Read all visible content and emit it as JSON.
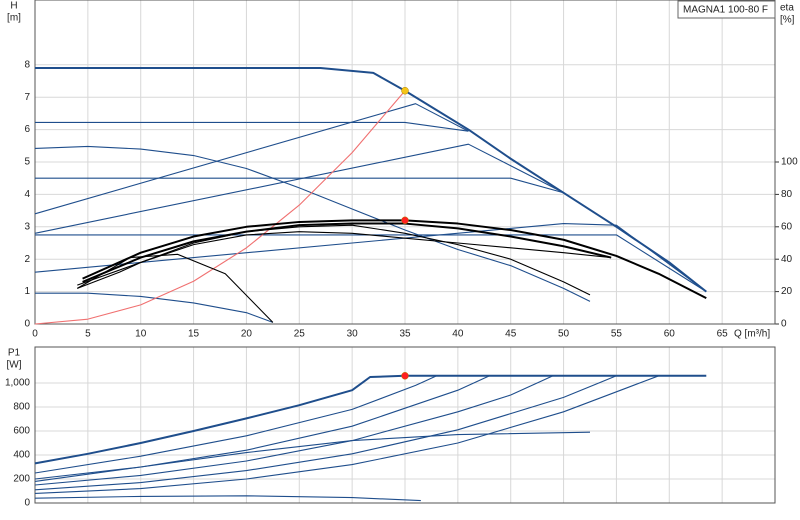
{
  "title": "MAGNA1 100-80 F",
  "chart_data": [
    {
      "type": "line",
      "y_label": "H",
      "y_unit": "[m]",
      "y2_label": "eta",
      "y2_unit": "[%]",
      "x_label": "Q [m³/h]",
      "xlim": [
        0,
        70
      ],
      "xticks": [
        0,
        5,
        10,
        15,
        20,
        25,
        30,
        35,
        40,
        45,
        50,
        55,
        60,
        65
      ],
      "ylim": [
        0,
        10
      ],
      "yticks": [
        0,
        1,
        2,
        3,
        4,
        5,
        6,
        7,
        8
      ],
      "y2lim": [
        0,
        200
      ],
      "y2ticks": [
        0,
        20,
        40,
        60,
        80,
        100
      ],
      "grid": true,
      "series": [
        {
          "color": "#1f4e8c",
          "line_width": 2,
          "x": [
            0,
            27,
            32,
            35,
            41,
            45,
            50,
            55,
            60,
            63.5
          ],
          "values": [
            7.9,
            7.9,
            7.75,
            7.2,
            6.0,
            5.1,
            4.05,
            3.0,
            1.9,
            1.0
          ]
        },
        {
          "color": "#1f4e8c",
          "x": [
            0,
            35,
            41
          ],
          "values": [
            6.22,
            6.22,
            5.95
          ]
        },
        {
          "color": "#1f4e8c",
          "x": [
            0,
            45,
            50
          ],
          "values": [
            4.5,
            4.5,
            4.05
          ]
        },
        {
          "color": "#1f4e8c",
          "x": [
            0,
            55,
            63.5
          ],
          "values": [
            2.75,
            2.75,
            1.0
          ]
        },
        {
          "color": "#1f4e8c",
          "x": [
            0,
            5,
            10,
            15,
            20,
            25,
            30,
            35,
            40,
            45,
            50,
            52.5
          ],
          "values": [
            5.42,
            5.48,
            5.4,
            5.2,
            4.8,
            4.2,
            3.55,
            2.9,
            2.3,
            1.8,
            1.1,
            0.7
          ]
        },
        {
          "color": "#1f4e8c",
          "x": [
            0,
            5,
            10,
            15,
            20,
            22.5
          ],
          "values": [
            0.95,
            0.95,
            0.85,
            0.65,
            0.35,
            0.05
          ]
        },
        {
          "color": "#1f4e8c",
          "x": [
            0,
            36,
            41
          ],
          "values": [
            3.4,
            6.8,
            5.95
          ]
        },
        {
          "color": "#1f4e8c",
          "x": [
            0,
            41,
            50
          ],
          "values": [
            2.8,
            5.55,
            4.05
          ]
        },
        {
          "color": "#1f4e8c",
          "x": [
            0,
            50,
            55,
            63.5
          ],
          "values": [
            1.6,
            3.1,
            3.05,
            1.0
          ]
        },
        {
          "color": "#f07070",
          "x": [
            0,
            5,
            10,
            15,
            20,
            25,
            30,
            35
          ],
          "values": [
            0,
            0.15,
            0.59,
            1.32,
            2.35,
            3.67,
            5.29,
            7.2
          ]
        },
        {
          "color": "#000000",
          "axis": "y2",
          "line_width": 2,
          "x": [
            4.5,
            10,
            15,
            20,
            25,
            30,
            35,
            40,
            45,
            50,
            55,
            59,
            63.5
          ],
          "values": [
            28,
            44,
            54,
            60,
            63,
            64,
            64,
            62,
            58,
            52,
            42,
            31,
            16
          ]
        },
        {
          "color": "#000000",
          "axis": "y2",
          "line_width": 2,
          "x": [
            4.5,
            10,
            15,
            20,
            25,
            30,
            35,
            40,
            45,
            50,
            54.5
          ],
          "values": [
            26,
            41,
            51,
            57,
            61,
            62,
            62,
            59,
            54,
            48,
            41
          ]
        },
        {
          "color": "#000000",
          "axis": "y2",
          "x": [
            4,
            10,
            15,
            20,
            25,
            30,
            35,
            40,
            45,
            50,
            52.5
          ],
          "values": [
            24,
            38,
            50,
            57,
            60,
            61,
            56,
            49,
            40,
            26,
            18
          ]
        },
        {
          "color": "#000000",
          "axis": "y2",
          "x": [
            4,
            8,
            10,
            15,
            20,
            25,
            30,
            35,
            40,
            45,
            50,
            54.5
          ],
          "values": [
            22,
            32,
            38,
            49,
            55,
            57,
            56,
            53,
            50,
            47,
            44,
            41
          ]
        },
        {
          "color": "#000000",
          "axis": "y2",
          "x": [
            4,
            9,
            13.5,
            18,
            22.5
          ],
          "values": [
            22,
            41,
            43,
            31,
            1
          ]
        }
      ],
      "points": [
        {
          "x": 35,
          "y": 7.2,
          "color": "#f5c518"
        },
        {
          "x": 35,
          "y": 64,
          "axis": "y2",
          "color": "#ff2020"
        }
      ]
    },
    {
      "type": "line",
      "y_label": "P1",
      "y_unit": "[W]",
      "xlim": [
        0,
        70
      ],
      "xticks": [
        0,
        5,
        10,
        15,
        20,
        25,
        30,
        35,
        40,
        45,
        50,
        55,
        60,
        65
      ],
      "show_xtick_labels": false,
      "ylim": [
        0,
        1300
      ],
      "yticks": [
        0,
        200,
        400,
        600,
        800,
        {
          "value": 1000,
          "label": "1,000"
        }
      ],
      "grid": true,
      "series": [
        {
          "color": "#1f4e8c",
          "line_width": 2,
          "x": [
            0,
            5,
            10,
            15,
            20,
            25,
            30,
            31.7,
            35,
            63.5
          ],
          "values": [
            330,
            410,
            500,
            600,
            705,
            815,
            940,
            1050,
            1060,
            1060
          ]
        },
        {
          "color": "#1f4e8c",
          "x": [
            0,
            10,
            20,
            30,
            36,
            38
          ],
          "values": [
            250,
            390,
            560,
            780,
            980,
            1060
          ]
        },
        {
          "color": "#1f4e8c",
          "x": [
            0,
            10,
            20,
            30,
            40,
            43
          ],
          "values": [
            200,
            300,
            440,
            640,
            940,
            1060
          ]
        },
        {
          "color": "#1f4e8c",
          "x": [
            0,
            10,
            20,
            30,
            40,
            45,
            49
          ],
          "values": [
            150,
            230,
            350,
            520,
            760,
            900,
            1060
          ]
        },
        {
          "color": "#1f4e8c",
          "x": [
            0,
            10,
            20,
            30,
            40,
            50,
            55
          ],
          "values": [
            110,
            170,
            270,
            410,
            610,
            880,
            1060
          ]
        },
        {
          "color": "#1f4e8c",
          "x": [
            0,
            10,
            20,
            30,
            40,
            50,
            56,
            59
          ],
          "values": [
            80,
            120,
            200,
            320,
            500,
            760,
            960,
            1060
          ]
        },
        {
          "color": "#1f4e8c",
          "x": [
            0,
            10,
            20,
            30,
            40,
            52.5
          ],
          "values": [
            180,
            300,
            420,
            520,
            570,
            590
          ]
        },
        {
          "color": "#1f4e8c",
          "x": [
            0,
            10,
            20,
            30,
            36.5
          ],
          "values": [
            40,
            55,
            60,
            45,
            20
          ]
        }
      ],
      "points": [
        {
          "x": 35,
          "y": 1060,
          "color": "#ff2020"
        }
      ]
    }
  ]
}
